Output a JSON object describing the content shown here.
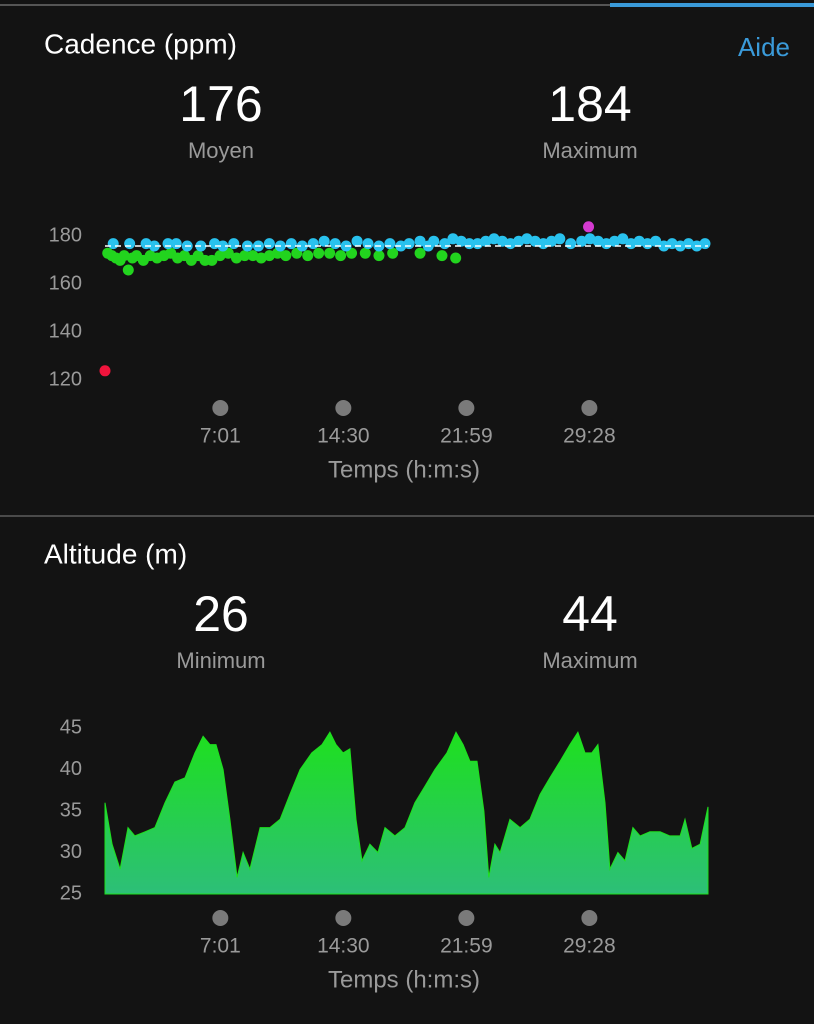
{
  "help": "Aide",
  "chart_data": [
    {
      "type": "scatter",
      "title": "Cadence (ppm)",
      "stats": [
        {
          "value": 176,
          "label": "Moyen"
        },
        {
          "value": 184,
          "label": "Maximum"
        }
      ],
      "average_line": true,
      "xlabel": "Temps (h:m:s)",
      "xlim": [
        0,
        2201
      ],
      "xticks": [
        {
          "value": 421,
          "label": "7:01"
        },
        {
          "value": 870,
          "label": "14:30"
        },
        {
          "value": 1319,
          "label": "21:59"
        },
        {
          "value": 1768,
          "label": "29:28"
        }
      ],
      "ylim": [
        116,
        186
      ],
      "yticks": [
        120,
        140,
        160,
        180
      ],
      "series": [
        {
          "color": "#22d41e",
          "x": [
            10,
            25,
            40,
            55,
            70,
            85,
            100,
            115,
            140,
            165,
            190,
            215,
            240,
            265,
            290,
            315,
            340,
            365,
            390,
            420,
            450,
            480,
            510,
            540,
            570,
            600,
            630,
            660,
            700,
            740,
            780,
            820,
            860,
            900,
            950,
            1000,
            1050,
            1150,
            1230,
            1280
          ],
          "values": [
            173,
            172,
            171,
            170,
            172,
            166,
            171,
            172,
            170,
            172,
            171,
            172,
            173,
            171,
            172,
            170,
            172,
            170,
            170,
            172,
            173,
            171,
            172,
            172,
            171,
            172,
            173,
            172,
            173,
            172,
            173,
            173,
            172,
            173,
            173,
            172,
            173,
            173,
            172,
            171
          ]
        },
        {
          "color": "#29c2ee",
          "x": [
            30,
            90,
            150,
            180,
            230,
            260,
            300,
            350,
            400,
            430,
            470,
            520,
            560,
            600,
            640,
            680,
            720,
            760,
            800,
            840,
            880,
            920,
            960,
            1000,
            1040,
            1080,
            1110,
            1150,
            1180,
            1200,
            1240,
            1270,
            1300,
            1330,
            1360,
            1390,
            1420,
            1450,
            1480,
            1510,
            1540,
            1570,
            1600,
            1630,
            1660,
            1700,
            1740,
            1770,
            1800,
            1830,
            1860,
            1890,
            1920,
            1950,
            1980,
            2010,
            2040,
            2070,
            2100,
            2130,
            2160,
            2190
          ],
          "values": [
            177,
            177,
            177,
            176,
            177,
            177,
            176,
            176,
            177,
            176,
            177,
            176,
            176,
            177,
            176,
            177,
            176,
            177,
            178,
            177,
            176,
            178,
            177,
            176,
            177,
            176,
            177,
            178,
            176,
            178,
            177,
            179,
            178,
            177,
            177,
            178,
            179,
            178,
            177,
            178,
            179,
            178,
            177,
            178,
            179,
            177,
            178,
            179,
            178,
            177,
            178,
            179,
            177,
            178,
            177,
            178,
            176,
            177,
            176,
            177,
            176,
            177
          ]
        },
        {
          "color": "#f0143c",
          "x": [
            0
          ],
          "values": [
            124
          ]
        },
        {
          "color": "#d43ad0",
          "x": [
            1765
          ],
          "values": [
            184
          ]
        }
      ]
    },
    {
      "type": "area",
      "title": "Altitude (m)",
      "stats": [
        {
          "value": 26,
          "label": "Minimum"
        },
        {
          "value": 44,
          "label": "Maximum"
        }
      ],
      "xlabel": "Temps (h:m:s)",
      "xlim": [
        0,
        2201
      ],
      "xticks": [
        {
          "value": 421,
          "label": "7:01"
        },
        {
          "value": 870,
          "label": "14:30"
        },
        {
          "value": 1319,
          "label": "21:59"
        },
        {
          "value": 1768,
          "label": "29:28"
        }
      ],
      "ylim": [
        25,
        46
      ],
      "yticks": [
        25,
        30,
        35,
        40,
        45
      ],
      "color": "#1ee01e",
      "x": [
        0,
        26,
        55,
        84,
        109,
        146,
        182,
        219,
        255,
        292,
        328,
        358,
        383,
        405,
        431,
        456,
        482,
        504,
        529,
        566,
        602,
        639,
        675,
        712,
        755,
        792,
        821,
        843,
        869,
        894,
        916,
        938,
        967,
        996,
        1022,
        1058,
        1095,
        1131,
        1168,
        1204,
        1248,
        1281,
        1307,
        1332,
        1358,
        1383,
        1401,
        1423,
        1442,
        1478,
        1515,
        1551,
        1588,
        1624,
        1661,
        1697,
        1726,
        1752,
        1777,
        1799,
        1825,
        1843,
        1872,
        1898,
        1927,
        1953,
        1989,
        2026,
        2062,
        2099,
        2117,
        2142,
        2172,
        2201
      ],
      "values": [
        36,
        31,
        28,
        33,
        32,
        32.5,
        33,
        36,
        38.5,
        39,
        42,
        44,
        43,
        43,
        40,
        34,
        27,
        30,
        28,
        33,
        33,
        34,
        37,
        40,
        42,
        43,
        44.5,
        43,
        42,
        42.5,
        34,
        29,
        31,
        30,
        33,
        32,
        33,
        36,
        38,
        40,
        42,
        44.5,
        43,
        41,
        41,
        35,
        27,
        31,
        30,
        34,
        33,
        34,
        37,
        39,
        41,
        43,
        44.5,
        42,
        42,
        43,
        36,
        28,
        30,
        29,
        33,
        32,
        32.5,
        32.5,
        32,
        32,
        34,
        30.5,
        31,
        35.5
      ]
    }
  ]
}
